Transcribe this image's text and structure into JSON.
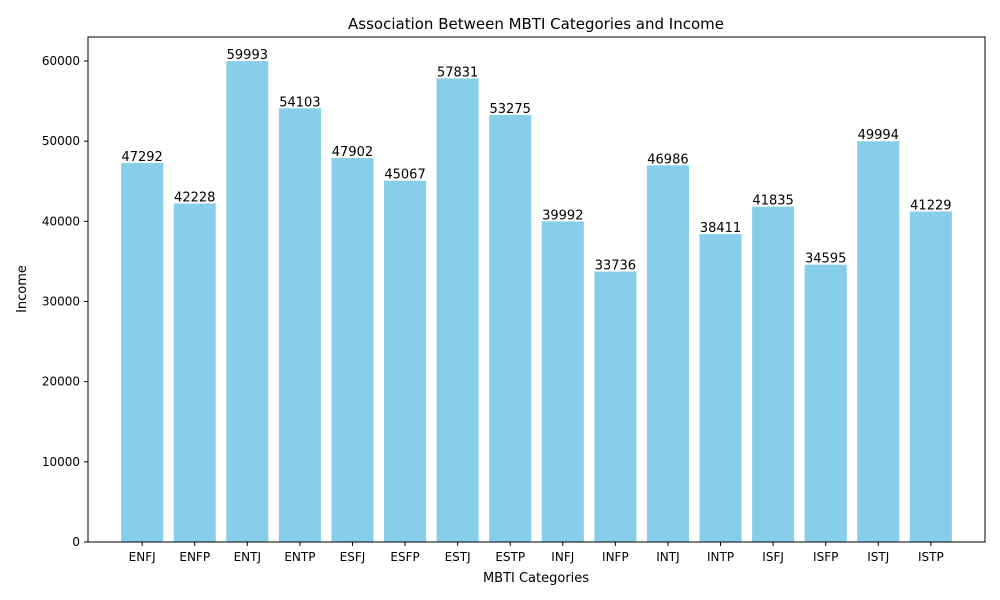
{
  "chart_data": {
    "type": "bar",
    "title": "Association Between MBTI Categories and Income",
    "xlabel": "MBTI Categories",
    "ylabel": "Income",
    "categories": [
      "ENFJ",
      "ENFP",
      "ENTJ",
      "ENTP",
      "ESFJ",
      "ESFP",
      "ESTJ",
      "ESTP",
      "INFJ",
      "INFP",
      "INTJ",
      "INTP",
      "ISFJ",
      "ISFP",
      "ISTJ",
      "ISTP"
    ],
    "values": [
      47292,
      42228,
      59993,
      54103,
      47902,
      45067,
      57831,
      53275,
      39992,
      33736,
      46986,
      38411,
      41835,
      34595,
      49994,
      41229
    ],
    "yticks": [
      0,
      10000,
      20000,
      30000,
      40000,
      50000,
      60000
    ],
    "ylim": [
      0,
      62996
    ],
    "bar_color": "#87CEEB",
    "grid": false,
    "data_labels": true
  }
}
